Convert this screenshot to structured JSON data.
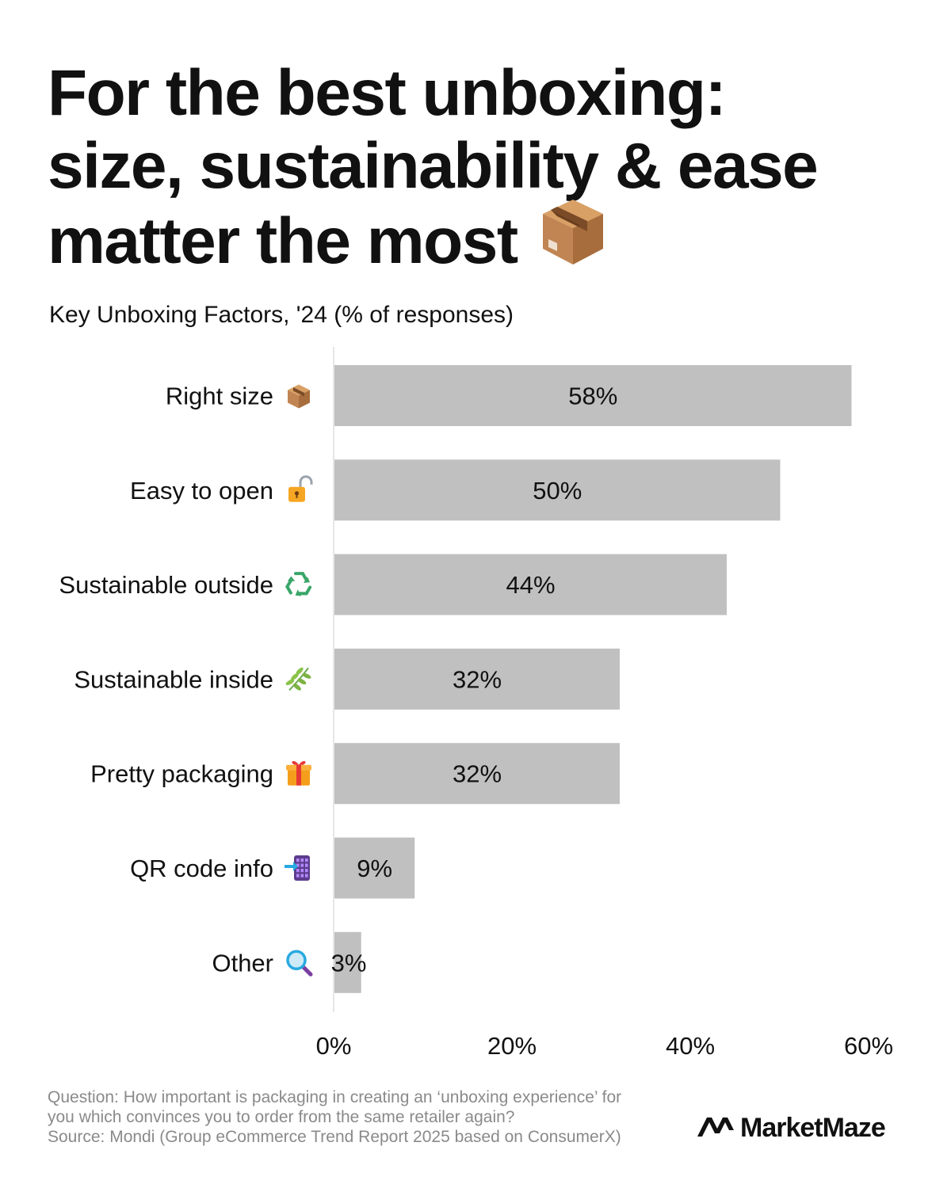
{
  "title_lines": [
    "For the best unboxing:",
    "size, sustainability & ease",
    "matter the most"
  ],
  "title_icon": "package-icon",
  "subtitle": "Key Unboxing Factors, '24 (% of responses)",
  "chart_data": {
    "type": "bar",
    "orientation": "horizontal",
    "categories": [
      "Right size",
      "Easy to open",
      "Sustainable outside",
      "Sustainable inside",
      "Pretty packaging",
      "QR code info",
      "Other"
    ],
    "category_icons": [
      "package-icon",
      "unlocked-padlock-icon",
      "recycle-icon",
      "herb-icon",
      "gift-icon",
      "mobile-phone-arrow-icon",
      "magnifying-glass-icon"
    ],
    "values": [
      58,
      50,
      44,
      32,
      32,
      9,
      3
    ],
    "value_labels": [
      "58%",
      "50%",
      "44%",
      "32%",
      "32%",
      "9%",
      "3%"
    ],
    "xlim": [
      0,
      60
    ],
    "xticks": [
      0,
      20,
      40,
      60
    ],
    "xtick_labels": [
      "0%",
      "20%",
      "40%",
      "60%"
    ],
    "bar_color": "#c0c0c0",
    "grid": false,
    "legend": "none"
  },
  "footer": {
    "question_line1": "Question: How important is packaging in creating an ‘unboxing experience’ for",
    "question_line2": "you which convinces you to order from the same retailer again?",
    "source": "Source: Mondi (Group eCommerce Trend Report 2025 based on ConsumerX)"
  },
  "brand": {
    "name": "MarketMaze",
    "icon": "marketmaze-logo-icon"
  },
  "colors": {
    "text": "#111111",
    "footer_text": "#8a8a8a",
    "bar": "#c0c0c0",
    "axis_line": "#dddddd"
  }
}
